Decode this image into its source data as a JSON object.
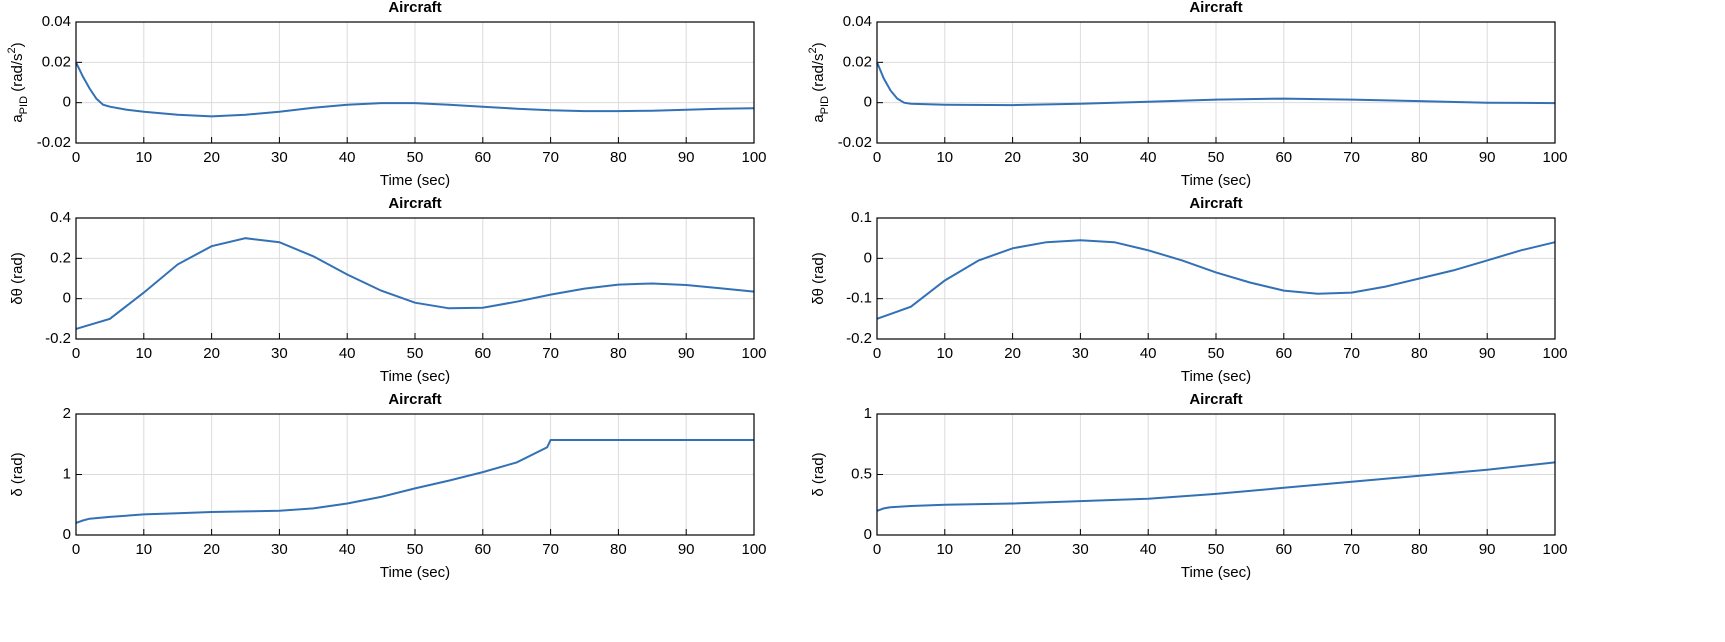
{
  "chart_data": [
    {
      "type": "line",
      "title": "Aircraft",
      "xlabel": "Time (sec)",
      "ylabel": [
        "a",
        "PID",
        " (rad/s",
        "2",
        ")"
      ],
      "ylabel_style": [
        "normal",
        "sub",
        "normal",
        "sup",
        "normal"
      ],
      "xlim": [
        0,
        100
      ],
      "xticks": [
        0,
        10,
        20,
        30,
        40,
        50,
        60,
        70,
        80,
        90,
        100
      ],
      "ylim": [
        -0.02,
        0.04
      ],
      "yticks": [
        -0.02,
        0,
        0.02,
        0.04
      ],
      "grid": true,
      "color": "#3371b6",
      "x": [
        0,
        1,
        2,
        3,
        4,
        5,
        7.5,
        10,
        15,
        20,
        25,
        30,
        35,
        40,
        45,
        50,
        55,
        60,
        65,
        70,
        75,
        80,
        85,
        90,
        95,
        100
      ],
      "values": [
        0.02,
        0.013,
        0.007,
        0.002,
        -0.001,
        -0.002,
        -0.0035,
        -0.0045,
        -0.006,
        -0.0068,
        -0.006,
        -0.0045,
        -0.0025,
        -0.001,
        -0.0002,
        -0.0002,
        -0.001,
        -0.002,
        -0.003,
        -0.0038,
        -0.0042,
        -0.0042,
        -0.004,
        -0.0035,
        -0.003,
        -0.0028
      ]
    },
    {
      "type": "line",
      "title": "Aircraft",
      "xlabel": "Time (sec)",
      "ylabel": [
        "a",
        "PID",
        " (rad/s",
        "2",
        ")"
      ],
      "ylabel_style": [
        "normal",
        "sub",
        "normal",
        "sup",
        "normal"
      ],
      "xlim": [
        0,
        100
      ],
      "xticks": [
        0,
        10,
        20,
        30,
        40,
        50,
        60,
        70,
        80,
        90,
        100
      ],
      "ylim": [
        -0.02,
        0.04
      ],
      "yticks": [
        -0.02,
        0,
        0.02,
        0.04
      ],
      "grid": true,
      "color": "#3371b6",
      "x": [
        0,
        1,
        2,
        3,
        4,
        5,
        7.5,
        10,
        20,
        30,
        40,
        50,
        60,
        70,
        80,
        90,
        100
      ],
      "values": [
        0.02,
        0.012,
        0.006,
        0.002,
        0,
        -0.0005,
        -0.0008,
        -0.001,
        -0.0012,
        -0.0005,
        0.0005,
        0.0015,
        0.002,
        0.0015,
        0.0008,
        0,
        -0.0002
      ]
    },
    {
      "type": "line",
      "title": "Aircraft",
      "xlabel": "Time (sec)",
      "ylabel": [
        "δθ (rad)"
      ],
      "ylabel_style": [
        "normal"
      ],
      "xlim": [
        0,
        100
      ],
      "xticks": [
        0,
        10,
        20,
        30,
        40,
        50,
        60,
        70,
        80,
        90,
        100
      ],
      "ylim": [
        -0.2,
        0.4
      ],
      "yticks": [
        -0.2,
        0,
        0.2,
        0.4
      ],
      "grid": true,
      "color": "#3371b6",
      "x": [
        0,
        5,
        10,
        15,
        20,
        25,
        30,
        35,
        40,
        45,
        50,
        55,
        60,
        65,
        70,
        75,
        80,
        85,
        90,
        95,
        100
      ],
      "values": [
        -0.15,
        -0.1,
        0.03,
        0.17,
        0.26,
        0.3,
        0.28,
        0.21,
        0.12,
        0.04,
        -0.02,
        -0.048,
        -0.045,
        -0.015,
        0.02,
        0.05,
        0.07,
        0.075,
        0.068,
        0.052,
        0.035
      ]
    },
    {
      "type": "line",
      "title": "Aircraft",
      "xlabel": "Time (sec)",
      "ylabel": [
        "δθ (rad)"
      ],
      "ylabel_style": [
        "normal"
      ],
      "xlim": [
        0,
        100
      ],
      "xticks": [
        0,
        10,
        20,
        30,
        40,
        50,
        60,
        70,
        80,
        90,
        100
      ],
      "ylim": [
        -0.2,
        0.1
      ],
      "yticks": [
        -0.2,
        -0.1,
        0,
        0.1
      ],
      "grid": true,
      "color": "#3371b6",
      "x": [
        0,
        5,
        10,
        15,
        20,
        25,
        30,
        35,
        40,
        45,
        50,
        55,
        60,
        65,
        70,
        75,
        80,
        85,
        90,
        95,
        100
      ],
      "values": [
        -0.15,
        -0.12,
        -0.055,
        -0.005,
        0.025,
        0.04,
        0.045,
        0.04,
        0.02,
        -0.005,
        -0.035,
        -0.06,
        -0.08,
        -0.088,
        -0.085,
        -0.07,
        -0.05,
        -0.03,
        -0.005,
        0.02,
        0.04
      ]
    },
    {
      "type": "line",
      "title": "Aircraft",
      "xlabel": "Time (sec)",
      "ylabel": [
        "δ (rad)"
      ],
      "ylabel_style": [
        "normal"
      ],
      "xlim": [
        0,
        100
      ],
      "xticks": [
        0,
        10,
        20,
        30,
        40,
        50,
        60,
        70,
        80,
        90,
        100
      ],
      "ylim": [
        0,
        2
      ],
      "yticks": [
        0,
        1,
        2
      ],
      "grid": true,
      "color": "#3371b6",
      "x": [
        0,
        1,
        2,
        5,
        10,
        15,
        20,
        25,
        30,
        35,
        40,
        45,
        50,
        55,
        60,
        65,
        69.5,
        70,
        75,
        100
      ],
      "values": [
        0.2,
        0.24,
        0.27,
        0.3,
        0.34,
        0.36,
        0.38,
        0.39,
        0.4,
        0.44,
        0.52,
        0.63,
        0.77,
        0.9,
        1.04,
        1.2,
        1.45,
        1.57,
        1.57,
        1.57
      ]
    },
    {
      "type": "line",
      "title": "Aircraft",
      "xlabel": "Time (sec)",
      "ylabel": [
        "δ (rad)"
      ],
      "ylabel_style": [
        "normal"
      ],
      "xlim": [
        0,
        100
      ],
      "xticks": [
        0,
        10,
        20,
        30,
        40,
        50,
        60,
        70,
        80,
        90,
        100
      ],
      "ylim": [
        0,
        1
      ],
      "yticks": [
        0,
        0.5,
        1
      ],
      "grid": true,
      "color": "#3371b6",
      "x": [
        0,
        1,
        2,
        5,
        10,
        20,
        30,
        40,
        50,
        60,
        70,
        80,
        90,
        100
      ],
      "values": [
        0.2,
        0.22,
        0.23,
        0.24,
        0.25,
        0.26,
        0.28,
        0.3,
        0.34,
        0.39,
        0.44,
        0.49,
        0.54,
        0.6
      ]
    }
  ]
}
